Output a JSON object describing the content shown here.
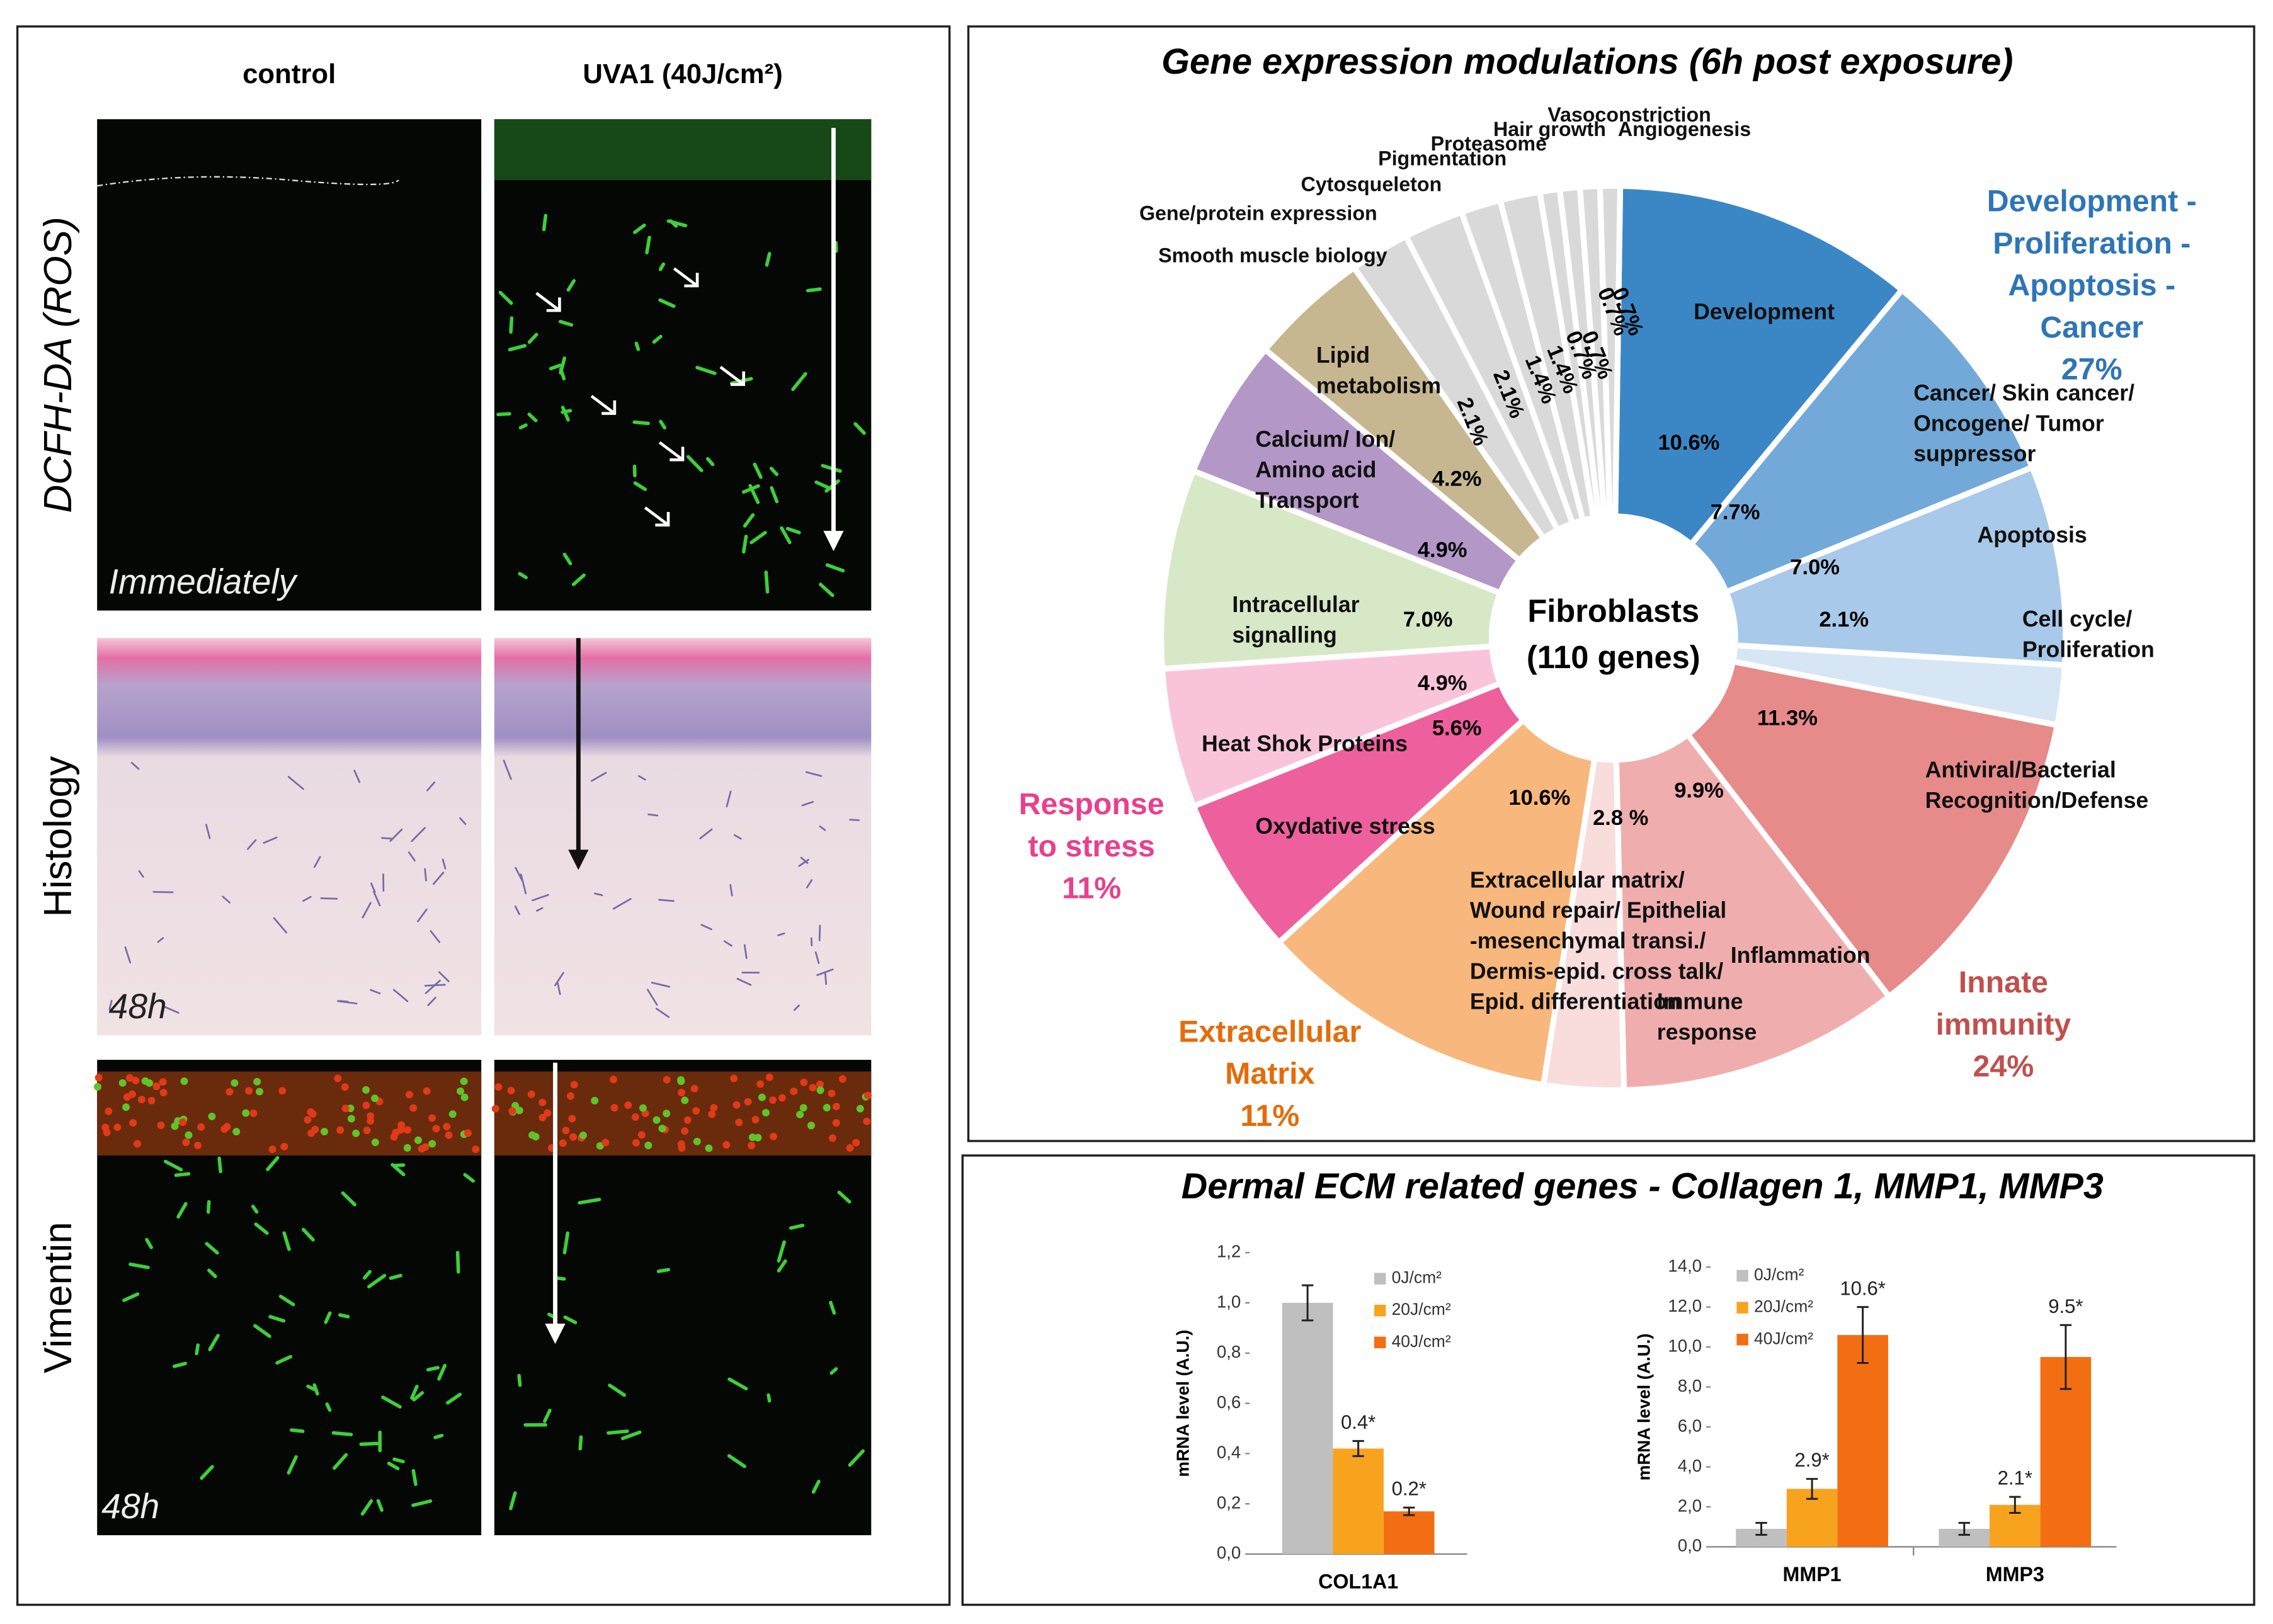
{
  "microscopy": {
    "columns": [
      "control",
      "UVA1 (40J/cm²)"
    ],
    "rows": [
      {
        "label": "DCFH-DA (ROS)",
        "time": "Immediately"
      },
      {
        "label": "Histology",
        "time": "48h"
      },
      {
        "label": "Vimentin",
        "time": "48h"
      }
    ]
  },
  "ecm_panel": {
    "title": "Dermal ECM related genes - Collagen 1, MMP1, MMP3"
  },
  "chart_data": [
    {
      "type": "pie",
      "title": "Gene expression modulations  (6h post exposure)",
      "center_label": [
        "Fibroblasts",
        "(110 genes)"
      ],
      "categories": [
        [
          "Development"
        ],
        [
          "Cancer/ Skin cancer/",
          "Oncogene/ Tumor",
          "suppressor"
        ],
        [
          "Apoptosis"
        ],
        [
          "Cell cycle/",
          "Proliferation"
        ],
        [
          "Antiviral/Bacterial",
          "Recognition/Defense"
        ],
        [
          "Inflammation"
        ],
        [
          "Immune",
          "response"
        ],
        [
          "Extracellular matrix/",
          "Wound repair/ Epithelial",
          "-mesenchymal transi./",
          "Dermis-epid. cross talk/",
          "Epid. differentiation"
        ],
        [
          "Oxydative stress"
        ],
        [
          "Heat Shok Proteins"
        ],
        [
          "Intracellular",
          "signalling"
        ],
        [
          "Calcium/ Ion/",
          "Amino acid",
          "Transport"
        ],
        [
          "Lipid",
          "metabolism"
        ],
        [
          "Smooth muscle biology"
        ],
        [
          "Gene/protein expression"
        ],
        [
          "Cytosqueleton"
        ],
        [
          "Pigmentation"
        ],
        [
          "Proteasome"
        ],
        [
          "Hair growth"
        ],
        [
          "Vasoconstriction"
        ],
        [
          "Angiogenesis"
        ]
      ],
      "values": [
        10.6,
        7.7,
        7.0,
        2.1,
        11.3,
        9.9,
        2.8,
        10.6,
        5.6,
        4.9,
        7.0,
        4.9,
        4.2,
        2.1,
        2.1,
        1.4,
        1.4,
        0.7,
        0.7,
        0.7,
        0.7
      ],
      "value_labels": [
        "10.6%",
        "7.7%",
        "7.0%",
        "2.1%",
        "11.3%",
        "9.9%",
        "2.8 %",
        "10.6%",
        "5.6%",
        "4.9%",
        "7.0%",
        "4.9%",
        "4.2%",
        "2.1%",
        "2.1%",
        "1.4%",
        "1.4%",
        "0.7%",
        "0.7%",
        "0.7%",
        "0.7%"
      ],
      "colors": [
        "#3b87c6",
        "#72a9d8",
        "#a8c9e9",
        "#d7e6f4",
        "#e68a8a",
        "#efaead",
        "#f9dcdc",
        "#f8b77c",
        "#ee5f9d",
        "#f9c4da",
        "#d7e8c7",
        "#b397c7",
        "#c7b791",
        "#d9d9d9",
        "#d9d9d9",
        "#d9d9d9",
        "#d9d9d9",
        "#d9d9d9",
        "#d9d9d9",
        "#d9d9d9",
        "#d9d9d9"
      ],
      "annotations": [
        {
          "lines": [
            "Development -",
            "Proliferation -",
            "Apoptosis -",
            "Cancer",
            "27%"
          ],
          "color": "#2e75b6"
        },
        {
          "lines": [
            "Innate",
            "immunity",
            "24%"
          ],
          "color": "#c0504d"
        },
        {
          "lines": [
            "Extracellular",
            "Matrix",
            "11%"
          ],
          "color": "#e46c0a"
        },
        {
          "lines": [
            "Response",
            "to stress",
            "11%"
          ],
          "color": "#e8408e"
        }
      ]
    },
    {
      "type": "bar",
      "categories": [
        "COL1A1"
      ],
      "ylabel": "mRNA level (A.U.)",
      "ylim": [
        0,
        1.2
      ],
      "yticks": [
        {
          "value": 0,
          "label": "0,0"
        },
        {
          "value": 0.2,
          "label": "0,2"
        },
        {
          "value": 0.4,
          "label": "0,4"
        },
        {
          "value": 0.6,
          "label": "0,6"
        },
        {
          "value": 0.8,
          "label": "0,8"
        },
        {
          "value": 1.0,
          "label": "1,0"
        },
        {
          "value": 1.2,
          "label": "1,2"
        }
      ],
      "series": [
        {
          "name": "0J/cm²",
          "color": "#bfbfbf",
          "values": [
            1.0
          ],
          "errors": [
            0.07
          ],
          "value_labels": [
            null
          ]
        },
        {
          "name": "20J/cm²",
          "color": "#f8a31e",
          "values": [
            0.42
          ],
          "errors": [
            0.03
          ],
          "value_labels": [
            "0.4*"
          ]
        },
        {
          "name": "40J/cm²",
          "color": "#f36e12",
          "values": [
            0.17
          ],
          "errors": [
            0.015
          ],
          "value_labels": [
            "0.2*"
          ]
        }
      ]
    },
    {
      "type": "bar",
      "categories": [
        "MMP1",
        "MMP3"
      ],
      "ylabel": "mRNA level (A.U.)",
      "ylim": [
        0,
        14
      ],
      "yticks": [
        {
          "value": 0,
          "label": "0,0"
        },
        {
          "value": 2,
          "label": "2,0"
        },
        {
          "value": 4,
          "label": "4,0"
        },
        {
          "value": 6,
          "label": "6,0"
        },
        {
          "value": 8,
          "label": "8,0"
        },
        {
          "value": 10,
          "label": "10,0"
        },
        {
          "value": 12,
          "label": "12,0"
        },
        {
          "value": 14,
          "label": "14,0"
        }
      ],
      "series": [
        {
          "name": "0J/cm²",
          "color": "#bfbfbf",
          "values": [
            0.9,
            0.9
          ],
          "errors": [
            0.3,
            0.3
          ],
          "value_labels": [
            null,
            null
          ]
        },
        {
          "name": "20J/cm²",
          "color": "#f8a31e",
          "values": [
            2.9,
            2.1
          ],
          "errors": [
            0.5,
            0.4
          ],
          "value_labels": [
            "2.9*",
            "2.1*"
          ]
        },
        {
          "name": "40J/cm²",
          "color": "#f36e12",
          "values": [
            10.6,
            9.5
          ],
          "errors": [
            1.4,
            1.6
          ],
          "value_labels": [
            "10.6*",
            "9.5*"
          ]
        }
      ]
    }
  ]
}
